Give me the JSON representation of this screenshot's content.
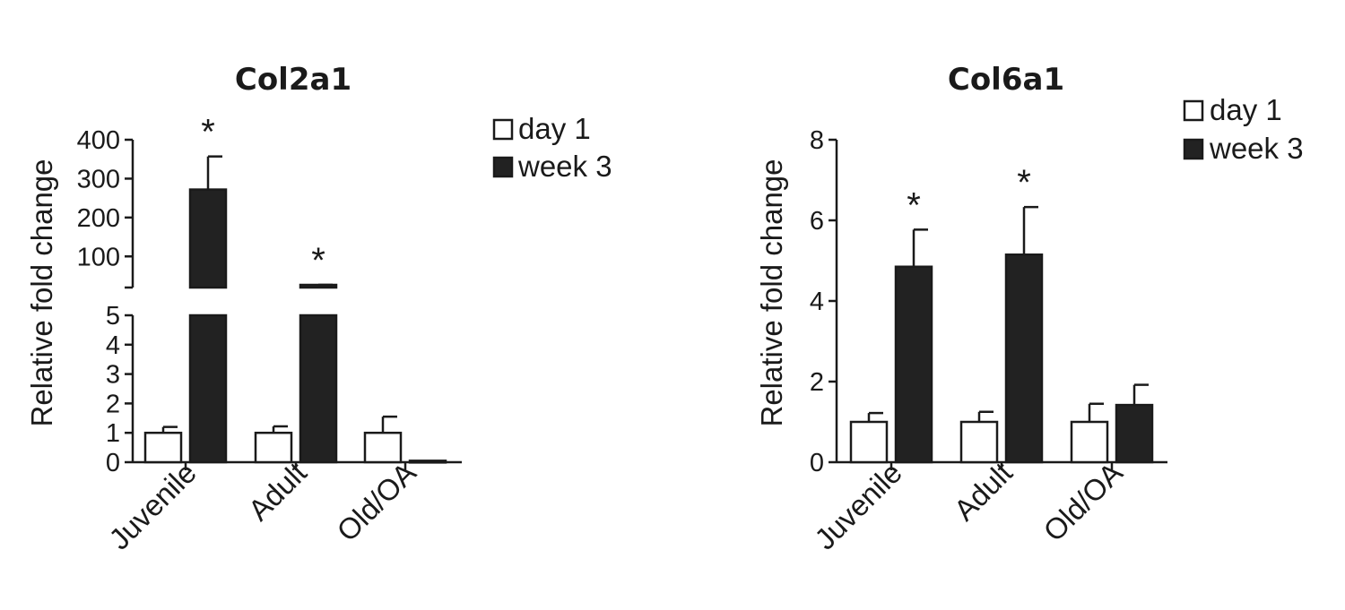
{
  "chart_data": [
    {
      "type": "bar",
      "title": "Col2a1",
      "ylabel": "Relative fold change",
      "categories": [
        "Juvenile",
        "Adult",
        "Old/OA"
      ],
      "series": [
        {
          "name": "day 1",
          "values": [
            1.0,
            1.0,
            1.0
          ],
          "errors": [
            0.2,
            0.22,
            0.55
          ],
          "fill": "#ffffff"
        },
        {
          "name": "week 3",
          "values": [
            272,
            22,
            0.05
          ],
          "errors": [
            85,
            5,
            0
          ],
          "fill": "#222222"
        }
      ],
      "significance": [
        "*",
        "*",
        ""
      ],
      "y_axis_break": true,
      "ylim_lower": [
        0,
        5
      ],
      "ylim_upper": [
        20,
        400
      ],
      "yticks_lower": [
        "0",
        "1",
        "2",
        "3",
        "4",
        "5"
      ],
      "yticks_upper": [
        "100",
        "200",
        "300",
        "400"
      ],
      "legend_position": "top-right"
    },
    {
      "type": "bar",
      "title": "Col6a1",
      "ylabel": "Relative fold change",
      "categories": [
        "Juvenile",
        "Adult",
        "Old/OA"
      ],
      "series": [
        {
          "name": "day 1",
          "values": [
            1.0,
            1.0,
            1.0
          ],
          "errors": [
            0.22,
            0.25,
            0.45
          ],
          "fill": "#ffffff"
        },
        {
          "name": "week 3",
          "values": [
            4.85,
            5.15,
            1.42
          ],
          "errors": [
            0.92,
            1.18,
            0.5
          ],
          "fill": "#222222"
        }
      ],
      "significance": [
        "*",
        "*",
        ""
      ],
      "ylim": [
        0,
        8
      ],
      "yticks": [
        "0",
        "2",
        "4",
        "6",
        "8"
      ],
      "legend_position": "top-right"
    }
  ]
}
